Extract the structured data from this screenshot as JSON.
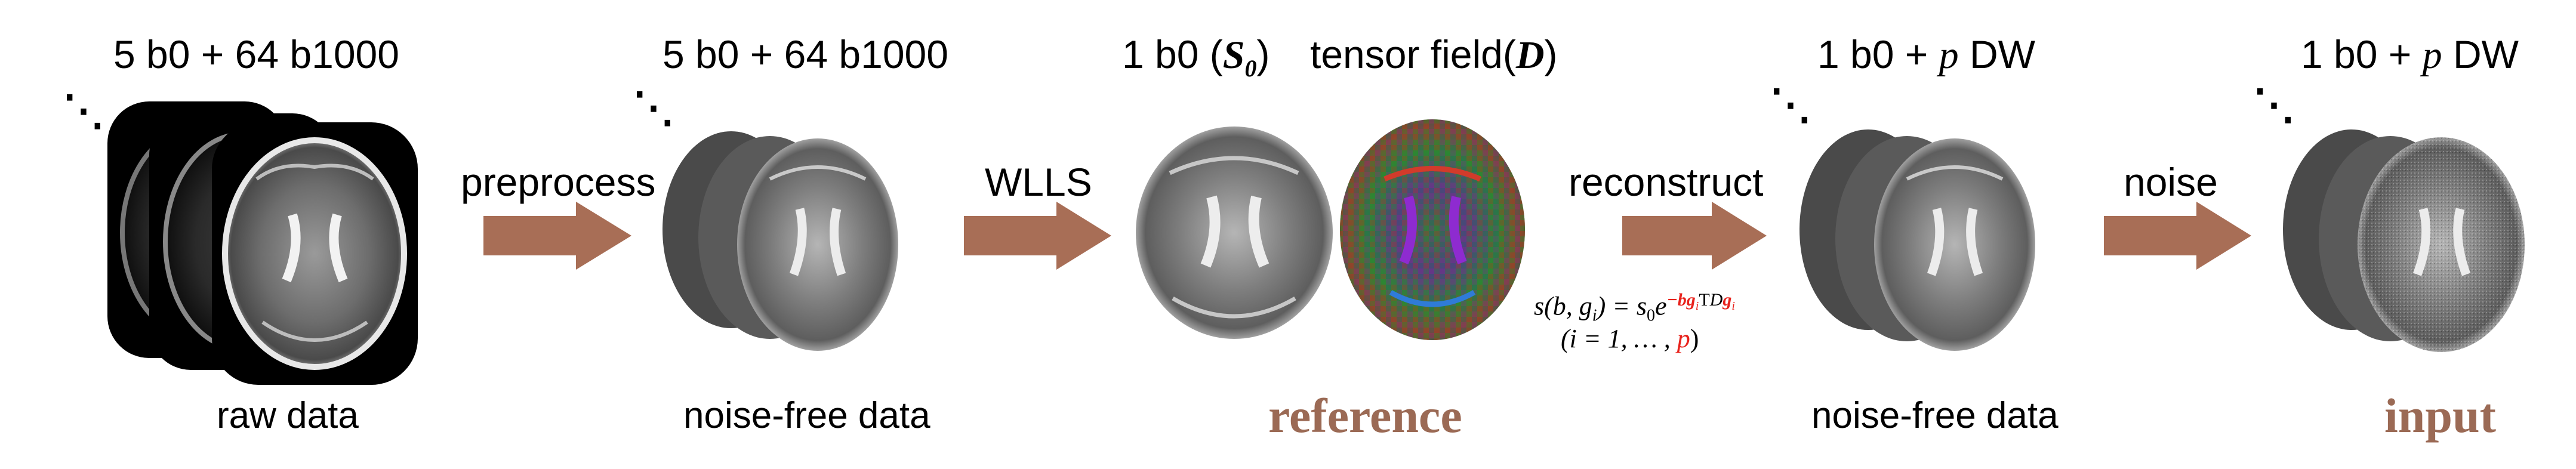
{
  "stages": {
    "raw": {
      "top": "5 b0 + 64 b1000",
      "bottom": "raw data"
    },
    "preprocessed": {
      "top": "5 b0 + 64 b1000",
      "bottom": "noise-free data"
    },
    "reference": {
      "top_b0": "1 b0 (",
      "top_b0_symbol": "S",
      "top_b0_sub": "0",
      "top_b0_close": ")",
      "top_tensor": "tensor field(",
      "top_tensor_symbol": "D",
      "top_tensor_close": ")",
      "bottom": "reference"
    },
    "reconstructed": {
      "top_prefix": "1 b0 + ",
      "top_var": "p",
      "top_suffix": " DW",
      "bottom": "noise-free data"
    },
    "input": {
      "top_prefix": "1 b0 + ",
      "top_var": "p",
      "top_suffix": " DW",
      "bottom": "input"
    }
  },
  "arrows": [
    {
      "label": "preprocess"
    },
    {
      "label": "WLLS"
    },
    {
      "label": "reconstruct"
    },
    {
      "label": "noise"
    }
  ],
  "formula": {
    "lhs": "s(b, g",
    "lhs_sub": "i",
    "lhs_close": ") = s",
    "s_sub": "0",
    "e": "e",
    "exp_neg": "−bg",
    "exp_sub": "i",
    "exp_T": "T",
    "exp_D": "D",
    "exp_g": "g",
    "exp_g_sub": "i",
    "range_open": "(i = 1, … , ",
    "range_p": "p",
    "range_close": ")"
  },
  "ellipsis": "⋱",
  "colors": {
    "arrow": "#a86e56",
    "highlight_text": "#9b6a55",
    "formula_red": "#e8221c"
  }
}
